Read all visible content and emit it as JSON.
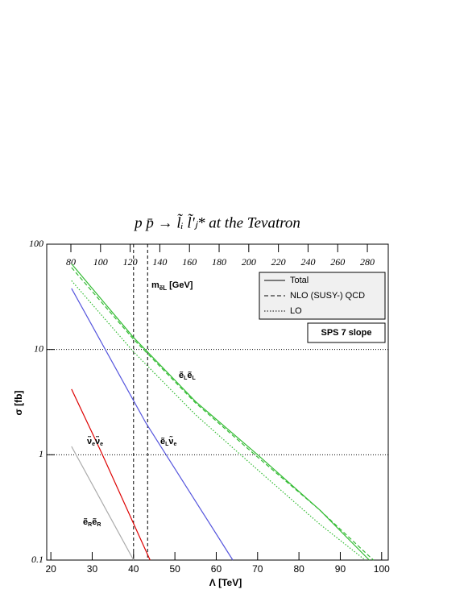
{
  "chart_data": {
    "type": "line",
    "title": "p p̄ → l̃ᵢ l̃'ⱼ* at the Tevatron",
    "xlabel": "Λ [TeV]",
    "ylabel": "σ [fb]",
    "x2label": {
      "main": "m",
      "sub": "ẽL",
      "unit": "[GeV]"
    },
    "xlim": [
      19,
      101.6
    ],
    "xticks": [
      20,
      30,
      40,
      50,
      60,
      70,
      80,
      90,
      100
    ],
    "x2lim": [
      63.7,
      294.1
    ],
    "x2ticks": [
      80,
      100,
      120,
      140,
      160,
      180,
      200,
      220,
      240,
      260,
      280
    ],
    "ylim": [
      0.1,
      100
    ],
    "yticks": [
      0.1,
      1,
      10,
      100
    ],
    "log_y": true,
    "grid": true,
    "vlines": [
      40,
      43.4
    ],
    "box_label": "SPS 7 slope",
    "legend": [
      {
        "name": "Total",
        "style": "solid"
      },
      {
        "name": "NLO (SUSY-) QCD",
        "style": "dashed"
      },
      {
        "name": "LO",
        "style": "dotted"
      }
    ],
    "series": [
      {
        "label": [
          [
            "ẽ",
            "L"
          ],
          [
            "ẽ",
            "L"
          ]
        ],
        "color": "#33bb33",
        "style": "solid",
        "x": [
          25,
          40,
          55,
          70,
          85,
          97
        ],
        "values": [
          65,
          13,
          3.2,
          1.0,
          0.3,
          0.1
        ]
      },
      {
        "color": "#33bb33",
        "style": "dashed",
        "x": [
          25,
          40,
          55,
          70,
          85,
          98
        ],
        "values": [
          60,
          12.5,
          3.1,
          0.95,
          0.3,
          0.1
        ]
      },
      {
        "color": "#33bb33",
        "style": "dotted",
        "x": [
          25,
          40,
          55,
          70,
          85,
          96
        ],
        "values": [
          45,
          9.5,
          2.4,
          0.72,
          0.22,
          0.1
        ]
      },
      {
        "label": [
          [
            "ẽ",
            "L"
          ],
          [
            "ν̃",
            "e"
          ]
        ],
        "color": "#5555dd",
        "style": "solid",
        "x": [
          25,
          43,
          64
        ],
        "values": [
          38,
          2,
          0.1
        ]
      },
      {
        "label": [
          [
            "ν̃",
            "e"
          ],
          [
            "ν̃",
            "e"
          ]
        ],
        "color": "#dd0000",
        "style": "solid",
        "x": [
          25,
          32,
          44
        ],
        "values": [
          4.2,
          1.1,
          0.1
        ]
      },
      {
        "label": [
          [
            "ẽ",
            "R"
          ],
          [
            "ẽ",
            "R"
          ]
        ],
        "color": "#aaaaaa",
        "style": "solid",
        "x": [
          25,
          40
        ],
        "values": [
          1.2,
          0.1
        ]
      }
    ]
  }
}
